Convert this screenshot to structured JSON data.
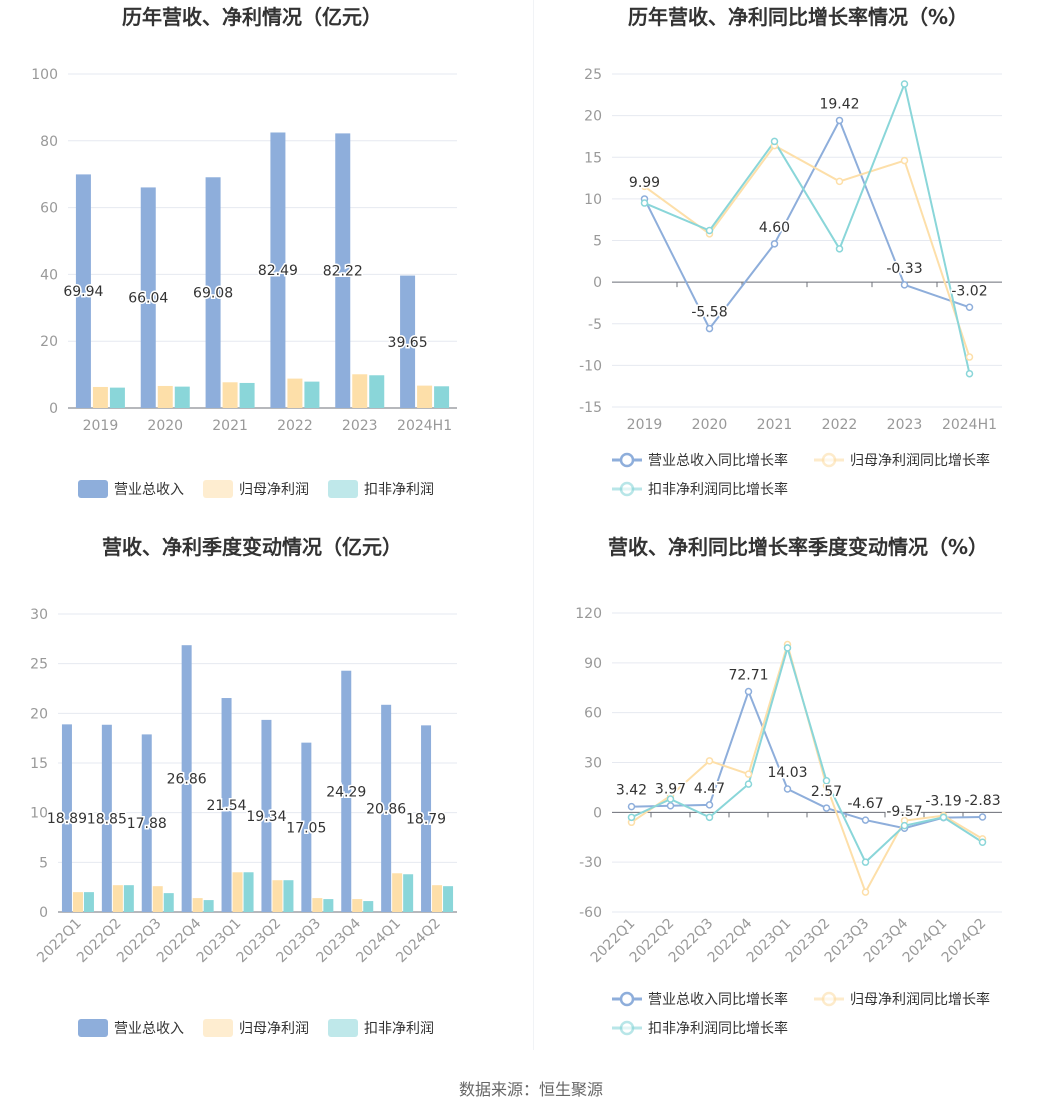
{
  "colors": {
    "revenue": "#8eaedb",
    "parent": "#fddfa9",
    "deducted": "#8ad6d9",
    "axis": "#999999",
    "grid": "#e6e9f0",
    "title": "#333333"
  },
  "source_text": "数据来源：恒生聚源",
  "chart_data": [
    {
      "type": "bar",
      "title": "历年营收、净利情况（亿元）",
      "categories": [
        "2019",
        "2020",
        "2021",
        "2022",
        "2023",
        "2024H1"
      ],
      "ylim": [
        0,
        100
      ],
      "yticks": [
        0,
        20,
        40,
        60,
        80,
        100
      ],
      "series": [
        {
          "name": "营业总收入",
          "values": [
            69.94,
            66.04,
            69.08,
            82.49,
            82.22,
            39.65
          ],
          "labeled": true
        },
        {
          "name": "归母净利润",
          "values": [
            6.3,
            6.6,
            7.7,
            8.8,
            10.1,
            6.7
          ]
        },
        {
          "name": "扣非净利润",
          "values": [
            6.1,
            6.4,
            7.5,
            7.9,
            9.8,
            6.5
          ]
        }
      ]
    },
    {
      "type": "line",
      "title": "历年营收、净利同比增长率情况（%）",
      "categories": [
        "2019",
        "2020",
        "2021",
        "2022",
        "2023",
        "2024H1"
      ],
      "ylim": [
        -15,
        25
      ],
      "yticks": [
        -15,
        -10,
        -5,
        0,
        5,
        10,
        15,
        20,
        25
      ],
      "series": [
        {
          "name": "营业总收入同比增长率",
          "values": [
            9.99,
            -5.58,
            4.6,
            19.42,
            -0.33,
            -3.02
          ],
          "labeled": true
        },
        {
          "name": "归母净利润同比增长率",
          "values": [
            11.5,
            5.8,
            16.4,
            12.1,
            14.6,
            -9.0
          ]
        },
        {
          "name": "扣非净利润同比增长率",
          "values": [
            9.5,
            6.2,
            16.9,
            4.0,
            23.8,
            -11.0
          ]
        }
      ]
    },
    {
      "type": "bar",
      "title": "营收、净利季度变动情况（亿元）",
      "categories": [
        "2022Q1",
        "2022Q2",
        "2022Q3",
        "2022Q4",
        "2023Q1",
        "2023Q2",
        "2023Q3",
        "2023Q4",
        "2024Q1",
        "2024Q2"
      ],
      "ylim": [
        0,
        30
      ],
      "yticks": [
        0,
        5,
        10,
        15,
        20,
        25,
        30
      ],
      "series": [
        {
          "name": "营业总收入",
          "values": [
            18.89,
            18.85,
            17.88,
            26.86,
            21.54,
            19.34,
            17.05,
            24.29,
            20.86,
            18.79
          ],
          "labeled": true
        },
        {
          "name": "归母净利润",
          "values": [
            2.0,
            2.7,
            2.6,
            1.4,
            4.0,
            3.2,
            1.4,
            1.3,
            3.9,
            2.7
          ]
        },
        {
          "name": "扣非净利润",
          "values": [
            2.0,
            2.7,
            1.9,
            1.2,
            4.0,
            3.2,
            1.3,
            1.1,
            3.8,
            2.6
          ]
        }
      ]
    },
    {
      "type": "line",
      "title": "营收、净利同比增长率季度变动情况（%）",
      "categories": [
        "2022Q1",
        "2022Q2",
        "2022Q3",
        "2022Q4",
        "2023Q1",
        "2023Q2",
        "2023Q3",
        "2023Q4",
        "2024Q1",
        "2024Q2"
      ],
      "ylim": [
        -60,
        120
      ],
      "yticks": [
        -60,
        -30,
        0,
        30,
        60,
        90,
        120
      ],
      "series": [
        {
          "name": "营业总收入同比增长率",
          "values": [
            3.42,
            3.97,
            4.47,
            72.71,
            14.03,
            2.57,
            -4.67,
            -9.57,
            -3.19,
            -2.83
          ],
          "labeled": true
        },
        {
          "name": "归母净利润同比增长率",
          "values": [
            -6,
            10,
            31,
            23,
            101,
            16,
            -48,
            -5,
            -2,
            -16
          ]
        },
        {
          "name": "扣非净利润同比增长率",
          "values": [
            -3,
            8,
            -3,
            17,
            99,
            19,
            -30,
            -8,
            -3,
            -18
          ]
        }
      ]
    }
  ]
}
